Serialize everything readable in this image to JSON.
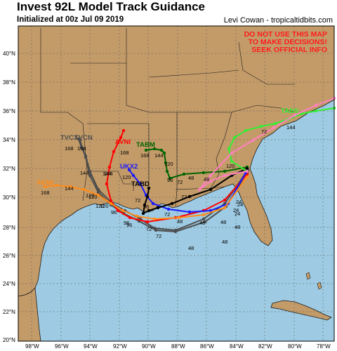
{
  "header": {
    "title": "Invest 92L Model Track Guidance",
    "subtitle": "Initialized at 00z Jul 09 2019",
    "credit": "Levi Cowan - tropicaltidbits.com"
  },
  "warning": {
    "lines": [
      "DO NOT USE THIS MAP",
      "TO MAKE DECISIONS!",
      "SEEK OFFICIAL INFO"
    ],
    "color": "#ff1a1a"
  },
  "axes": {
    "lat_labels": [
      "20°N",
      "22°N",
      "24°N",
      "26°N",
      "28°N",
      "30°N",
      "32°N",
      "34°N",
      "36°N",
      "38°N",
      "40°N"
    ],
    "lon_labels": [
      "98°W",
      "96°W",
      "94°W",
      "92°W",
      "90°W",
      "88°W",
      "86°W",
      "84°W",
      "82°W",
      "80°W",
      "78°W"
    ]
  },
  "colors": {
    "ocean": "#9ecbe3",
    "land": "#c39b69",
    "border": "#1a1a1a",
    "grid": "#555555"
  },
  "models": [
    {
      "name": "TVCX",
      "color": "#4d4d4d",
      "label_pos": "start"
    },
    {
      "name": "TVCN",
      "color": "#4d4d4d",
      "label_pos": "start"
    },
    {
      "name": "AVNI",
      "color": "#ff0000",
      "label_pos": "start"
    },
    {
      "name": "TABM",
      "color": "#006400",
      "label_pos": "start"
    },
    {
      "name": "UKX2",
      "color": "#1a1aff",
      "label_pos": "start"
    },
    {
      "name": "AEMI",
      "color": "#ff8c1a",
      "label_pos": "start"
    },
    {
      "name": "TABD",
      "color": "#000000",
      "label_pos": "start"
    },
    {
      "name": "TABS",
      "color": "#33ee33",
      "label_pos": "start"
    }
  ],
  "hour_labels": [
    {
      "text": "168"
    },
    {
      "text": "168"
    },
    {
      "text": "144"
    },
    {
      "text": "144"
    },
    {
      "text": "120"
    },
    {
      "text": "168"
    },
    {
      "text": "144"
    },
    {
      "text": "120"
    },
    {
      "text": "168"
    },
    {
      "text": "144"
    },
    {
      "text": "120"
    },
    {
      "text": "120"
    },
    {
      "text": "96"
    },
    {
      "text": "168"
    },
    {
      "text": "144"
    },
    {
      "text": "120"
    },
    {
      "text": "96"
    },
    {
      "text": "72"
    },
    {
      "text": "48"
    },
    {
      "text": "96"
    },
    {
      "text": "72"
    },
    {
      "text": "72"
    },
    {
      "text": "48"
    },
    {
      "text": "48"
    },
    {
      "text": "48"
    },
    {
      "text": "48"
    },
    {
      "text": "72"
    },
    {
      "text": "48"
    },
    {
      "text": "120"
    },
    {
      "text": "48"
    },
    {
      "text": "48"
    },
    {
      "text": "24"
    },
    {
      "text": "24"
    },
    {
      "text": "24"
    },
    {
      "text": "24"
    },
    {
      "text": "72"
    },
    {
      "text": "144"
    },
    {
      "text": "96"
    },
    {
      "text": "72"
    },
    {
      "text": "72"
    },
    {
      "text": "96"
    },
    {
      "text": "120"
    }
  ]
}
